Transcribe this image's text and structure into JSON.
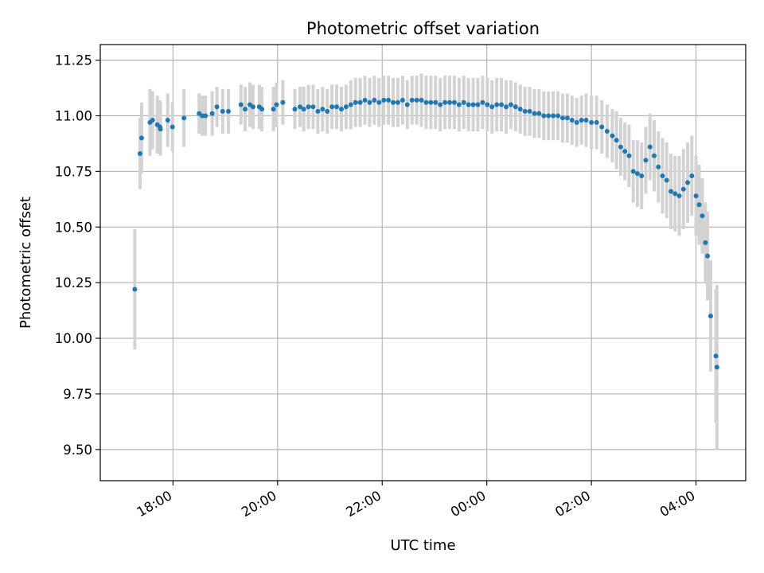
{
  "chart_data": {
    "type": "scatter",
    "title": "Photometric offset variation",
    "xlabel": "UTC time",
    "ylabel": "Photometric offset",
    "x_unit": "hours since 00:00 UTC (negative = previous day)",
    "xlim": [
      -7.39,
      4.95
    ],
    "ylim": [
      9.36,
      11.32
    ],
    "grid": true,
    "x_ticks": [
      {
        "value": -6,
        "label": "18:00"
      },
      {
        "value": -4,
        "label": "20:00"
      },
      {
        "value": -2,
        "label": "22:00"
      },
      {
        "value": 0,
        "label": "00:00"
      },
      {
        "value": 2,
        "label": "02:00"
      },
      {
        "value": 4,
        "label": "04:00"
      }
    ],
    "y_ticks": [
      {
        "value": 9.5,
        "label": "9.50"
      },
      {
        "value": 9.75,
        "label": "9.75"
      },
      {
        "value": 10.0,
        "label": "10.00"
      },
      {
        "value": 10.25,
        "label": "10.25"
      },
      {
        "value": 10.5,
        "label": "10.50"
      },
      {
        "value": 10.75,
        "label": "10.75"
      },
      {
        "value": 11.0,
        "label": "11.00"
      },
      {
        "value": 11.25,
        "label": "11.25"
      }
    ],
    "colors": {
      "point": "#1f77b4",
      "errorbar": "#d3d3d3",
      "grid": "#b0b0b0"
    },
    "points": [
      [
        -6.73,
        10.22,
        0.27
      ],
      [
        -6.63,
        10.83,
        0.16
      ],
      [
        -6.6,
        10.9,
        0.16
      ],
      [
        -6.44,
        10.97,
        0.15
      ],
      [
        -6.39,
        10.98,
        0.13
      ],
      [
        -6.3,
        10.96,
        0.13
      ],
      [
        -6.25,
        10.95,
        0.12
      ],
      [
        -6.24,
        10.94,
        0.12
      ],
      [
        -6.1,
        10.98,
        0.12
      ],
      [
        -6.01,
        10.95,
        0.11
      ],
      [
        -5.79,
        10.99,
        0.13
      ],
      [
        -5.5,
        11.01,
        0.09
      ],
      [
        -5.44,
        11.0,
        0.09
      ],
      [
        -5.38,
        11.0,
        0.09
      ],
      [
        -5.25,
        11.01,
        0.1
      ],
      [
        -5.16,
        11.04,
        0.09
      ],
      [
        -5.05,
        11.02,
        0.1
      ],
      [
        -4.94,
        11.02,
        0.1
      ],
      [
        -4.7,
        11.05,
        0.09
      ],
      [
        -4.62,
        11.03,
        0.1
      ],
      [
        -4.53,
        11.05,
        0.1
      ],
      [
        -4.47,
        11.04,
        0.1
      ],
      [
        -4.35,
        11.04,
        0.1
      ],
      [
        -4.3,
        11.03,
        0.1
      ],
      [
        -4.08,
        11.03,
        0.1
      ],
      [
        -4.02,
        11.05,
        0.1
      ],
      [
        -3.9,
        11.06,
        0.1
      ],
      [
        -3.67,
        11.03,
        0.09
      ],
      [
        -3.57,
        11.04,
        0.09
      ],
      [
        -3.5,
        11.03,
        0.1
      ],
      [
        -3.41,
        11.04,
        0.1
      ],
      [
        -3.32,
        11.04,
        0.1
      ],
      [
        -3.23,
        11.02,
        0.1
      ],
      [
        -3.14,
        11.03,
        0.1
      ],
      [
        -3.05,
        11.02,
        0.1
      ],
      [
        -2.96,
        11.04,
        0.1
      ],
      [
        -2.87,
        11.04,
        0.1
      ],
      [
        -2.78,
        11.03,
        0.1
      ],
      [
        -2.69,
        11.04,
        0.1
      ],
      [
        -2.6,
        11.05,
        0.11
      ],
      [
        -2.51,
        11.06,
        0.11
      ],
      [
        -2.42,
        11.06,
        0.11
      ],
      [
        -2.33,
        11.07,
        0.11
      ],
      [
        -2.24,
        11.06,
        0.11
      ],
      [
        -2.15,
        11.07,
        0.11
      ],
      [
        -2.06,
        11.06,
        0.11
      ],
      [
        -1.97,
        11.07,
        0.11
      ],
      [
        -1.88,
        11.07,
        0.11
      ],
      [
        -1.79,
        11.06,
        0.11
      ],
      [
        -1.7,
        11.06,
        0.11
      ],
      [
        -1.61,
        11.07,
        0.11
      ],
      [
        -1.52,
        11.05,
        0.11
      ],
      [
        -1.43,
        11.07,
        0.11
      ],
      [
        -1.34,
        11.07,
        0.11
      ],
      [
        -1.25,
        11.07,
        0.12
      ],
      [
        -1.16,
        11.06,
        0.12
      ],
      [
        -1.07,
        11.06,
        0.12
      ],
      [
        -0.98,
        11.06,
        0.12
      ],
      [
        -0.89,
        11.05,
        0.12
      ],
      [
        -0.8,
        11.06,
        0.12
      ],
      [
        -0.71,
        11.06,
        0.12
      ],
      [
        -0.62,
        11.06,
        0.12
      ],
      [
        -0.53,
        11.05,
        0.12
      ],
      [
        -0.44,
        11.06,
        0.12
      ],
      [
        -0.35,
        11.05,
        0.12
      ],
      [
        -0.26,
        11.05,
        0.12
      ],
      [
        -0.17,
        11.05,
        0.12
      ],
      [
        -0.08,
        11.06,
        0.12
      ],
      [
        0.01,
        11.05,
        0.12
      ],
      [
        0.1,
        11.04,
        0.12
      ],
      [
        0.19,
        11.05,
        0.12
      ],
      [
        0.28,
        11.05,
        0.12
      ],
      [
        0.37,
        11.04,
        0.12
      ],
      [
        0.46,
        11.05,
        0.11
      ],
      [
        0.55,
        11.04,
        0.11
      ],
      [
        0.64,
        11.03,
        0.11
      ],
      [
        0.73,
        11.02,
        0.11
      ],
      [
        0.82,
        11.02,
        0.11
      ],
      [
        0.91,
        11.01,
        0.11
      ],
      [
        1.0,
        11.01,
        0.11
      ],
      [
        1.09,
        11.0,
        0.11
      ],
      [
        1.18,
        11.0,
        0.11
      ],
      [
        1.27,
        11.0,
        0.11
      ],
      [
        1.36,
        11.0,
        0.11
      ],
      [
        1.45,
        10.99,
        0.11
      ],
      [
        1.54,
        10.99,
        0.11
      ],
      [
        1.63,
        10.98,
        0.11
      ],
      [
        1.72,
        10.97,
        0.11
      ],
      [
        1.81,
        10.98,
        0.11
      ],
      [
        1.9,
        10.98,
        0.12
      ],
      [
        2.0,
        10.97,
        0.12
      ],
      [
        2.1,
        10.97,
        0.12
      ],
      [
        2.2,
        10.95,
        0.12
      ],
      [
        2.3,
        10.93,
        0.12
      ],
      [
        2.4,
        10.91,
        0.12
      ],
      [
        2.48,
        10.89,
        0.13
      ],
      [
        2.56,
        10.86,
        0.13
      ],
      [
        2.64,
        10.84,
        0.13
      ],
      [
        2.72,
        10.82,
        0.14
      ],
      [
        2.8,
        10.75,
        0.14
      ],
      [
        2.88,
        10.74,
        0.15
      ],
      [
        2.96,
        10.73,
        0.15
      ],
      [
        3.04,
        10.8,
        0.15
      ],
      [
        3.12,
        10.86,
        0.15
      ],
      [
        3.2,
        10.82,
        0.16
      ],
      [
        3.28,
        10.77,
        0.16
      ],
      [
        3.36,
        10.73,
        0.17
      ],
      [
        3.44,
        10.71,
        0.17
      ],
      [
        3.52,
        10.66,
        0.17
      ],
      [
        3.6,
        10.65,
        0.17
      ],
      [
        3.68,
        10.64,
        0.18
      ],
      [
        3.76,
        10.67,
        0.18
      ],
      [
        3.84,
        10.7,
        0.18
      ],
      [
        3.92,
        10.73,
        0.18
      ],
      [
        4.0,
        10.64,
        0.18
      ],
      [
        4.06,
        10.6,
        0.18
      ],
      [
        4.12,
        10.55,
        0.17
      ],
      [
        4.18,
        10.43,
        0.18
      ],
      [
        4.22,
        10.37,
        0.2
      ],
      [
        4.28,
        10.1,
        0.25
      ],
      [
        4.38,
        9.92,
        0.3
      ],
      [
        4.4,
        9.87,
        0.37
      ]
    ]
  }
}
